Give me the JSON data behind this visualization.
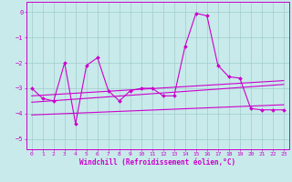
{
  "title": "",
  "xlabel": "Windchill (Refroidissement éolien,°C)",
  "ylabel": "",
  "background_color": "#c8eaea",
  "grid_color": "#a0cccc",
  "line_color": "#cc00cc",
  "xlim": [
    -0.5,
    23.5
  ],
  "ylim": [
    -5.4,
    0.4
  ],
  "yticks": [
    0,
    -1,
    -2,
    -3,
    -4,
    -5
  ],
  "xticks": [
    0,
    1,
    2,
    3,
    4,
    5,
    6,
    7,
    8,
    9,
    10,
    11,
    12,
    13,
    14,
    15,
    16,
    17,
    18,
    19,
    20,
    21,
    22,
    23
  ],
  "main_series": {
    "x": [
      0,
      1,
      2,
      3,
      4,
      5,
      6,
      7,
      8,
      9,
      10,
      11,
      12,
      13,
      14,
      15,
      16,
      17,
      18,
      19,
      20,
      21,
      22,
      23
    ],
    "y": [
      -3.0,
      -3.4,
      -3.5,
      -2.0,
      -4.4,
      -2.1,
      -1.8,
      -3.1,
      -3.5,
      -3.1,
      -3.0,
      -3.0,
      -3.3,
      -3.3,
      -1.35,
      -0.05,
      -0.15,
      -2.1,
      -2.55,
      -2.6,
      -3.8,
      -3.85,
      -3.85,
      -3.85
    ]
  },
  "trend_lines": [
    {
      "x": [
        0,
        23
      ],
      "y": [
        -3.3,
        -2.7
      ]
    },
    {
      "x": [
        0,
        23
      ],
      "y": [
        -3.55,
        -2.85
      ]
    },
    {
      "x": [
        0,
        23
      ],
      "y": [
        -4.05,
        -3.65
      ]
    }
  ],
  "tick_fontsize": 4.5,
  "xlabel_fontsize": 5.5,
  "marker_size": 2.0,
  "line_width": 0.8
}
